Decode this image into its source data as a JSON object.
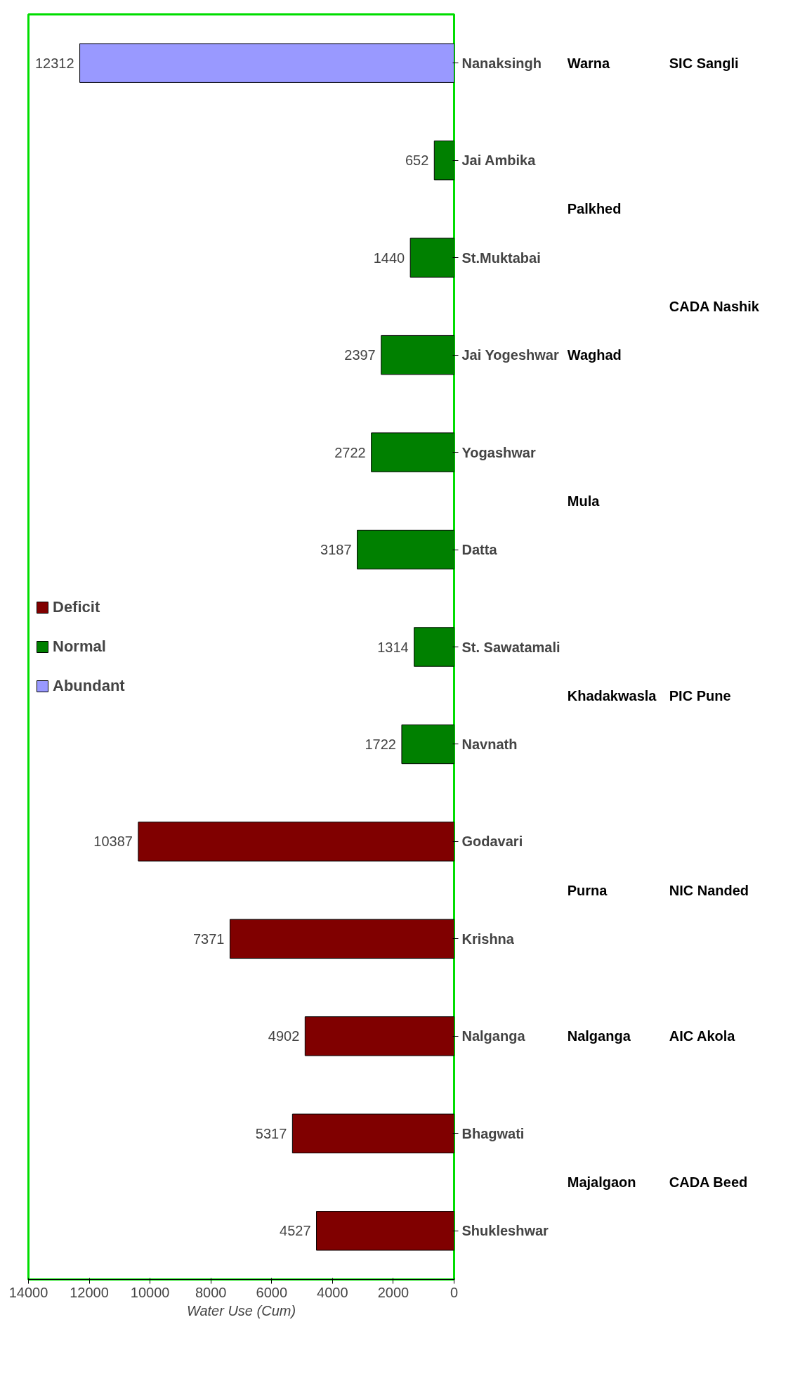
{
  "chart_data": {
    "type": "bar",
    "orientation": "horizontal",
    "xlabel": "Water Use (Cum)",
    "categories": [
      "Nanaksingh",
      "Jai Ambika",
      "St.Muktabai",
      "Jai Yogeshwar",
      "Yogashwar",
      "Datta",
      "St. Sawatamali",
      "Navnath",
      "Godavari",
      "Krishna",
      "Nalganga",
      "Bhagwati",
      "Shukleshwar"
    ],
    "series": [
      {
        "name": "Deficit",
        "color": "#800000",
        "values": [
          null,
          null,
          null,
          null,
          null,
          null,
          null,
          null,
          10387,
          7371,
          4902,
          5317,
          4527
        ]
      },
      {
        "name": "Normal",
        "color": "#008000",
        "values": [
          null,
          652,
          1440,
          2397,
          2722,
          3187,
          1314,
          1722,
          null,
          null,
          null,
          null,
          null
        ]
      },
      {
        "name": "Abundant",
        "color": "#9999ff",
        "values": [
          12312,
          null,
          null,
          null,
          null,
          null,
          null,
          null,
          null,
          null,
          null,
          null,
          null
        ]
      }
    ],
    "xlim": [
      14000,
      0
    ],
    "xticks": [
      0,
      2000,
      4000,
      6000,
      8000,
      10000,
      12000,
      14000
    ],
    "data_labels": true,
    "legend": "left",
    "grid": false,
    "annotations": [
      "Warna",
      "SIC Sangli",
      "Palkhed",
      "Waghad",
      "CADA Nashik",
      "Mula",
      "Khadakwasla",
      "PIC Pune",
      "Purna",
      "NIC Nanded",
      "Nalganga",
      "AIC Akola",
      "Majalgaon",
      "CADA Beed"
    ]
  }
}
